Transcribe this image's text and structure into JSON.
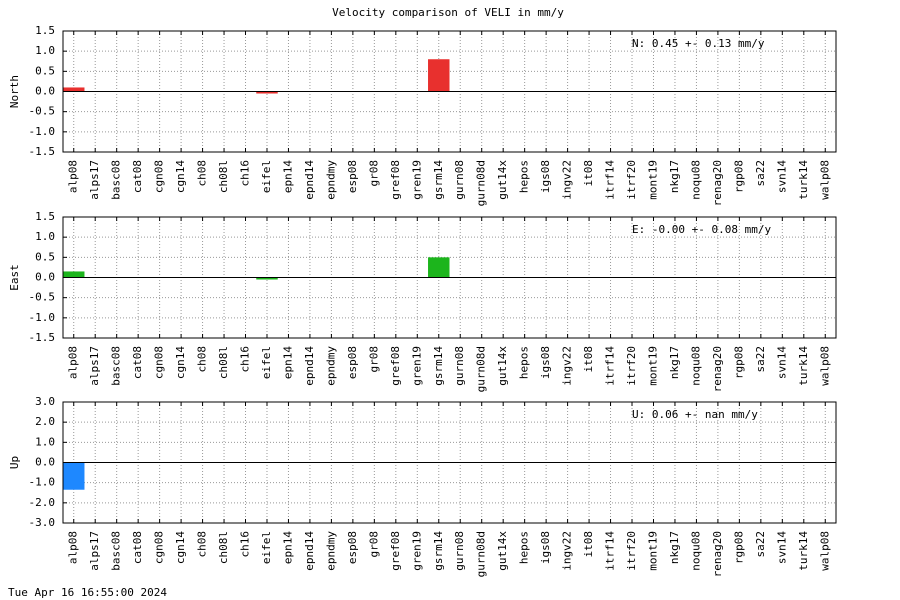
{
  "title": "Velocity comparison of VELI in mm/y",
  "timestamp": "Tue Apr 16 16:55:00 2024",
  "chart_data": [
    {
      "type": "bar",
      "ylabel": "North",
      "annotation": "N:   0.45 +-  0.13 mm/y",
      "color": "#e8302e",
      "grid": true,
      "categories": [
        "alp08",
        "alps17",
        "basc08",
        "cat08",
        "cgn08",
        "cgn14",
        "ch08",
        "ch08l",
        "ch16",
        "eifel",
        "epn14",
        "epnd14",
        "epndmy",
        "esp08",
        "gr08",
        "gref08",
        "gren19",
        "gsrm14",
        "gurn08",
        "gurn08d",
        "gut14x",
        "hepos",
        "igs08",
        "ingv22",
        "it08",
        "itrf14",
        "itrf20",
        "mont19",
        "nkg17",
        "noqu08",
        "renag20",
        "rgp08",
        "sa22",
        "svn14",
        "turk14",
        "walp08"
      ],
      "values": [
        0.1,
        null,
        null,
        null,
        null,
        null,
        null,
        null,
        null,
        -0.05,
        null,
        null,
        null,
        null,
        null,
        null,
        null,
        0.8,
        null,
        null,
        null,
        null,
        null,
        null,
        null,
        null,
        null,
        null,
        null,
        null,
        null,
        null,
        null,
        null,
        null,
        null
      ],
      "ylim": [
        -1.5,
        1.5
      ],
      "yticks": [
        -1.5,
        {
          "value": -1,
          "label": "-1.0"
        },
        -0.5,
        {
          "value": 0,
          "label": "0.0"
        },
        0.5,
        {
          "value": 1,
          "label": "1.0"
        },
        1.5
      ]
    },
    {
      "type": "bar",
      "ylabel": "East",
      "annotation": "E:  -0.00 +-  0.08 mm/y",
      "color": "#1cb51c",
      "grid": true,
      "categories": [
        "alp08",
        "alps17",
        "basc08",
        "cat08",
        "cgn08",
        "cgn14",
        "ch08",
        "ch08l",
        "ch16",
        "eifel",
        "epn14",
        "epnd14",
        "epndmy",
        "esp08",
        "gr08",
        "gref08",
        "gren19",
        "gsrm14",
        "gurn08",
        "gurn08d",
        "gut14x",
        "hepos",
        "igs08",
        "ingv22",
        "it08",
        "itrf14",
        "itrf20",
        "mont19",
        "nkg17",
        "noqu08",
        "renag20",
        "rgp08",
        "sa22",
        "svn14",
        "turk14",
        "walp08"
      ],
      "values": [
        0.15,
        null,
        null,
        null,
        null,
        null,
        null,
        null,
        null,
        -0.05,
        null,
        null,
        null,
        null,
        null,
        null,
        null,
        0.5,
        null,
        null,
        null,
        null,
        null,
        null,
        null,
        null,
        null,
        null,
        null,
        null,
        null,
        null,
        null,
        null,
        null,
        null
      ],
      "ylim": [
        -1.5,
        1.5
      ],
      "yticks": [
        -1.5,
        {
          "value": -1,
          "label": "-1.0"
        },
        -0.5,
        {
          "value": 0,
          "label": "0.0"
        },
        0.5,
        {
          "value": 1,
          "label": "1.0"
        },
        1.5
      ]
    },
    {
      "type": "bar",
      "ylabel": "Up",
      "annotation": "U:   0.06 +-   nan mm/y",
      "color": "#1e88ff",
      "grid": true,
      "categories": [
        "alp08",
        "alps17",
        "basc08",
        "cat08",
        "cgn08",
        "cgn14",
        "ch08",
        "ch08l",
        "ch16",
        "eifel",
        "epn14",
        "epnd14",
        "epndmy",
        "esp08",
        "gr08",
        "gref08",
        "gren19",
        "gsrm14",
        "gurn08",
        "gurn08d",
        "gut14x",
        "hepos",
        "igs08",
        "ingv22",
        "it08",
        "itrf14",
        "itrf20",
        "mont19",
        "nkg17",
        "noqu08",
        "renag20",
        "rgp08",
        "sa22",
        "svn14",
        "turk14",
        "walp08"
      ],
      "values": [
        -1.35,
        null,
        null,
        null,
        null,
        null,
        null,
        null,
        null,
        null,
        null,
        null,
        null,
        null,
        null,
        null,
        null,
        null,
        null,
        null,
        null,
        null,
        null,
        null,
        null,
        null,
        null,
        null,
        null,
        null,
        null,
        null,
        null,
        null,
        null,
        null
      ],
      "ylim": [
        -3,
        3
      ],
      "yticks": [
        {
          "value": -3,
          "label": "-3.0"
        },
        {
          "value": -2,
          "label": "-2.0"
        },
        {
          "value": -1,
          "label": "-1.0"
        },
        {
          "value": 0,
          "label": "0.0"
        },
        {
          "value": 1,
          "label": "1.0"
        },
        {
          "value": 2,
          "label": "2.0"
        },
        {
          "value": 3,
          "label": "3.0"
        }
      ]
    }
  ]
}
